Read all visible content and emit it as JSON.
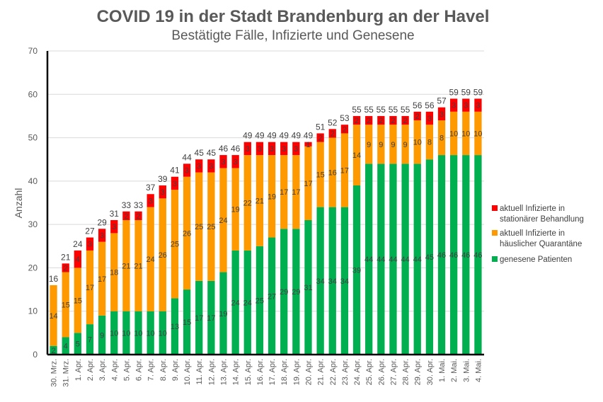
{
  "chart_data": {
    "type": "bar",
    "stacked": true,
    "title": "COVID 19 in der Stadt Brandenburg an der Havel",
    "subtitle": "Bestätigte Fälle, Infizierte und Genesene",
    "xlabel": "",
    "ylabel": "Anzahl",
    "ylim": [
      0,
      70
    ],
    "yticks": [
      0,
      10,
      20,
      30,
      40,
      50,
      60,
      70
    ],
    "grid": true,
    "legend_position": "right",
    "categories": [
      "30. Mrz.",
      "31. Mrz.",
      "1. Apr.",
      "2. Apr.",
      "3. Apr.",
      "4. Apr.",
      "5. Apr.",
      "6. Apr.",
      "7. Apr.",
      "8. Apr.",
      "9. Apr.",
      "10. Apr.",
      "11. Apr.",
      "12. Apr.",
      "13. Apr.",
      "14. Apr.",
      "15. Apr.",
      "16. Apr.",
      "17. Apr.",
      "18. Apr.",
      "19. Apr.",
      "20. Apr.",
      "21. Apr.",
      "22. Apr.",
      "23. Apr.",
      "24. Apr.",
      "25. Apr.",
      "26. Apr.",
      "27. Apr.",
      "28. Apr.",
      "29. Apr.",
      "30. Apr.",
      "1. Mai.",
      "2. Mai.",
      "3. Mai.",
      "4. Mai."
    ],
    "series": [
      {
        "name": "genesene Patienten",
        "color": "#00B050",
        "values": [
          2,
          4,
          5,
          7,
          9,
          10,
          10,
          10,
          10,
          10,
          13,
          15,
          17,
          17,
          19,
          24,
          24,
          25,
          27,
          29,
          29,
          31,
          34,
          34,
          34,
          39,
          44,
          44,
          44,
          44,
          44,
          45,
          46,
          46,
          46,
          46
        ]
      },
      {
        "name": "aktuell Infizierte in häuslicher Quarantäne",
        "color": "#FF9900",
        "values": [
          14,
          15,
          15,
          17,
          17,
          18,
          21,
          21,
          24,
          26,
          25,
          26,
          25,
          25,
          24,
          19,
          22,
          21,
          19,
          17,
          17,
          17,
          15,
          16,
          17,
          14,
          9,
          9,
          9,
          9,
          10,
          8,
          8,
          10,
          10,
          10
        ]
      },
      {
        "name": "aktuell Infizierte in stationärer Behandlung",
        "color": "#FF0000",
        "values": [
          0,
          2,
          4,
          3,
          3,
          3,
          2,
          2,
          3,
          3,
          3,
          3,
          3,
          3,
          3,
          3,
          3,
          3,
          3,
          3,
          3,
          1,
          2,
          2,
          2,
          2,
          2,
          2,
          2,
          2,
          2,
          3,
          3,
          3,
          3,
          3
        ]
      }
    ],
    "totals": [
      16,
      21,
      24,
      27,
      29,
      31,
      33,
      33,
      37,
      39,
      41,
      44,
      45,
      45,
      46,
      46,
      49,
      49,
      49,
      49,
      49,
      49,
      51,
      52,
      53,
      55,
      55,
      55,
      55,
      55,
      56,
      56,
      57,
      59,
      59,
      59
    ],
    "legend": [
      {
        "line1": "aktuell Infizierte in",
        "line2": "stationärer Behandlung",
        "color": "#FF0000"
      },
      {
        "line1": "aktuell Infizierte in",
        "line2": "häuslicher Quarantäne",
        "color": "#FF9900"
      },
      {
        "line1": "genesene Patienten",
        "line2": "",
        "color": "#00B050"
      }
    ]
  }
}
